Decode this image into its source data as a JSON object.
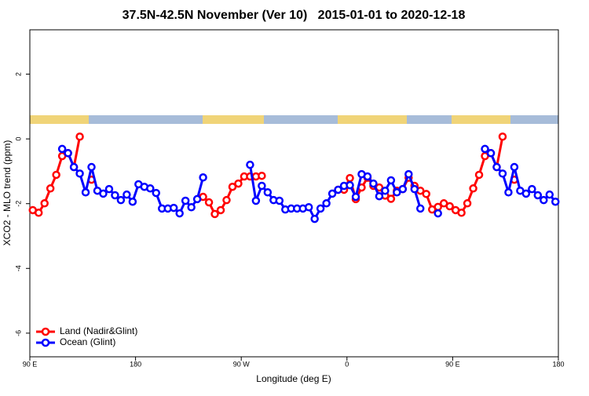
{
  "chart_data": {
    "type": "line",
    "title": "37.5N-42.5N November (Ver 10)   2015-01-01 to 2020-12-18",
    "x_label": "Longitude (deg E)",
    "y_label": "XCO2 - MLO trend (ppm)",
    "xlim": [
      90,
      540
    ],
    "ylim": [
      -6.73,
      3.37
    ],
    "xticks": [
      {
        "value": 90,
        "label": "90 E"
      },
      {
        "value": 180,
        "label": "180"
      },
      {
        "value": 270,
        "label": "90 W"
      },
      {
        "value": 360,
        "label": "0"
      },
      {
        "value": 450,
        "label": "90 E"
      },
      {
        "value": 540,
        "label": "180"
      }
    ],
    "yticks": [
      2,
      0,
      -2,
      -4,
      -6
    ],
    "legend": "bottomleft",
    "x": [
      92.5,
      97.5,
      102.5,
      107.5,
      112.5,
      117.5,
      122.5,
      127.5,
      132.5,
      137.5,
      142.5,
      147.5,
      152.5,
      157.5,
      162.5,
      167.5,
      172.5,
      177.5,
      182.5,
      187.5,
      192.5,
      197.5,
      202.5,
      207.5,
      212.5,
      217.5,
      222.5,
      227.5,
      232.5,
      237.5,
      242.5,
      247.5,
      252.5,
      257.5,
      262.5,
      267.5,
      272.5,
      277.5,
      282.5,
      287.5,
      292.5,
      297.5,
      302.5,
      307.5,
      312.5,
      317.5,
      322.5,
      327.5,
      332.5,
      337.5,
      342.5,
      347.5,
      352.5,
      357.5,
      362.5,
      367.5,
      372.5,
      377.5,
      382.5,
      387.5,
      392.5,
      397.5,
      402.5,
      407.5,
      412.5,
      417.5,
      422.5,
      427.5,
      432.5,
      437.5,
      442.5,
      447.5,
      452.5,
      457.5,
      462.5,
      467.5,
      472.5,
      477.5,
      482.5,
      487.5,
      492.5,
      497.5,
      502.5,
      507.5,
      512.5,
      517.5,
      522.5,
      527.5,
      532.5,
      537.5
    ],
    "series": [
      {
        "name": "Land (Nadir&Glint)",
        "color": "#ff0000",
        "values": [
          -2.2,
          -2.28,
          -1.99,
          -1.53,
          -1.11,
          -0.53,
          -0.44,
          -0.87,
          0.07,
          null,
          -1.26,
          null,
          null,
          null,
          null,
          null,
          null,
          null,
          null,
          null,
          null,
          null,
          null,
          null,
          null,
          null,
          null,
          null,
          null,
          -1.79,
          -1.96,
          -2.32,
          -2.2,
          -1.89,
          -1.48,
          -1.38,
          -1.16,
          -1.16,
          -1.16,
          -1.14,
          null,
          null,
          null,
          null,
          null,
          null,
          null,
          null,
          null,
          null,
          null,
          null,
          -1.57,
          -1.57,
          -1.21,
          -1.86,
          -1.5,
          -1.2,
          -1.45,
          -1.5,
          -1.75,
          -1.85,
          -1.6,
          -1.55,
          -1.2,
          -1.45,
          -1.6,
          -1.7,
          -2.18,
          -2.1,
          -1.99,
          -2.08,
          -2.2,
          -2.28,
          -1.99,
          -1.53,
          -1.11,
          -0.53,
          -0.44,
          -0.87,
          0.07,
          null,
          -1.26,
          null,
          null,
          null,
          null,
          null,
          null,
          null
        ]
      },
      {
        "name": "Ocean (Glint)",
        "color": "#0000ff",
        "values": [
          null,
          null,
          null,
          null,
          null,
          -0.31,
          -0.44,
          -0.87,
          -1.07,
          -1.65,
          -0.87,
          -1.6,
          -1.69,
          -1.55,
          -1.74,
          -1.89,
          -1.72,
          -1.94,
          -1.4,
          -1.48,
          -1.53,
          -1.67,
          -2.15,
          -2.15,
          -2.13,
          -2.3,
          -1.91,
          -2.11,
          -1.86,
          -1.19,
          null,
          null,
          null,
          null,
          null,
          null,
          null,
          -0.8,
          -1.91,
          -1.45,
          -1.65,
          -1.89,
          -1.91,
          -2.18,
          -2.15,
          -2.15,
          -2.15,
          -2.11,
          -2.47,
          -2.15,
          -1.99,
          -1.69,
          -1.57,
          -1.45,
          -1.43,
          -1.79,
          -1.09,
          -1.16,
          -1.38,
          -1.77,
          -1.6,
          -1.28,
          -1.65,
          -1.55,
          -1.09,
          -1.55,
          -2.15,
          null,
          null,
          -2.3,
          null,
          null,
          null,
          null,
          null,
          null,
          null,
          -0.31,
          -0.44,
          -0.87,
          -1.07,
          -1.65,
          -0.87,
          -1.6,
          -1.69,
          -1.55,
          -1.74,
          -1.89,
          -1.72,
          -1.94
        ]
      }
    ]
  }
}
